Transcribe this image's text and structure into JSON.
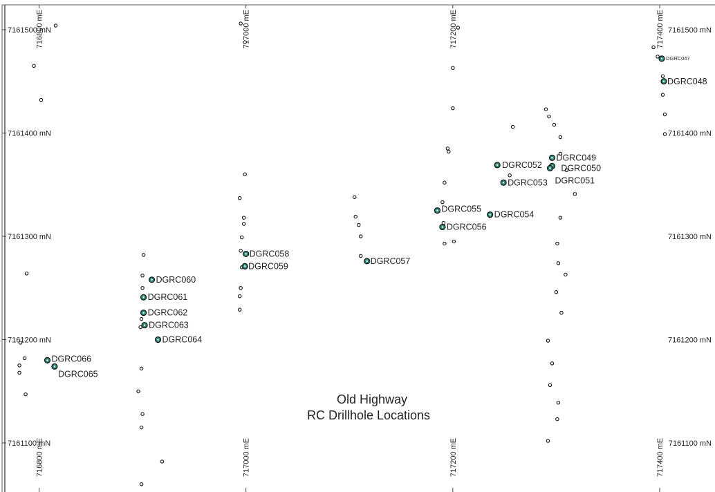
{
  "map": {
    "title_lines": [
      "Old Highway",
      "RC Drillhole Locations"
    ],
    "colors": {
      "labelled_hole_fill": "#2e8b7a",
      "hole_stroke": "#111111",
      "grid": "#444444",
      "border": "#555555",
      "background": "#ffffff"
    },
    "northing_labels": [
      {
        "value": 7161500,
        "text": "7161500 mN"
      },
      {
        "value": 7161400,
        "text": "7161400 mN"
      },
      {
        "value": 7161300,
        "text": "7161300 mN"
      },
      {
        "value": 7161200,
        "text": "7161200 mN"
      },
      {
        "value": 7161100,
        "text": "7161100 mN"
      }
    ],
    "easting_labels": [
      {
        "value": 716800,
        "text": "716800 mE"
      },
      {
        "value": 717000,
        "text": "717000 mE"
      },
      {
        "value": 717200,
        "text": "717200 mE"
      },
      {
        "value": 717400,
        "text": "717400 mE"
      }
    ],
    "labelled_holes": [
      {
        "id": "DGRC047",
        "e": 717402,
        "n": 7161472,
        "small": true
      },
      {
        "id": "DGRC048",
        "e": 717404,
        "n": 7161450
      },
      {
        "id": "DGRC049",
        "e": 717296,
        "n": 7161376
      },
      {
        "id": "DGRC050",
        "e": 717296,
        "n": 7161368
      },
      {
        "id": "DGRC051",
        "e": 717294,
        "n": 7161366
      },
      {
        "id": "DGRC052",
        "e": 717243,
        "n": 7161369
      },
      {
        "id": "DGRC053",
        "e": 717249,
        "n": 7161352
      },
      {
        "id": "DGRC054",
        "e": 717236,
        "n": 7161321
      },
      {
        "id": "DGRC055",
        "e": 717185,
        "n": 7161325
      },
      {
        "id": "DGRC056",
        "e": 717190,
        "n": 7161309
      },
      {
        "id": "DGRC057",
        "e": 717117,
        "n": 7161276
      },
      {
        "id": "DGRC058",
        "e": 717000,
        "n": 7161283
      },
      {
        "id": "DGRC059",
        "e": 716999,
        "n": 7161271
      },
      {
        "id": "DGRC060",
        "e": 716909,
        "n": 7161258
      },
      {
        "id": "DGRC061",
        "e": 716901,
        "n": 7161241
      },
      {
        "id": "DGRC062",
        "e": 716901,
        "n": 7161226
      },
      {
        "id": "DGRC063",
        "e": 716902,
        "n": 7161214
      },
      {
        "id": "DGRC064",
        "e": 716915,
        "n": 7161200
      },
      {
        "id": "DGRC066",
        "e": 716808,
        "n": 7161180
      },
      {
        "id": "DGRC065",
        "e": 716815,
        "n": 7161174
      }
    ],
    "unlabelled_holes": [
      {
        "e": 716816,
        "n": 7161504
      },
      {
        "e": 716795,
        "n": 7161465
      },
      {
        "e": 716802,
        "n": 7161432
      },
      {
        "e": 716788,
        "n": 7161264
      },
      {
        "e": 716782,
        "n": 7161197
      },
      {
        "e": 716786,
        "n": 7161182
      },
      {
        "e": 716781,
        "n": 7161175
      },
      {
        "e": 716781,
        "n": 7161168
      },
      {
        "e": 716787,
        "n": 7161147
      },
      {
        "e": 716901,
        "n": 7161282
      },
      {
        "e": 716900,
        "n": 7161262
      },
      {
        "e": 716900,
        "n": 7161250
      },
      {
        "e": 716899,
        "n": 7161220
      },
      {
        "e": 716898,
        "n": 7161212
      },
      {
        "e": 716899,
        "n": 7161172
      },
      {
        "e": 716896,
        "n": 7161150
      },
      {
        "e": 716900,
        "n": 7161128
      },
      {
        "e": 716899,
        "n": 7161115
      },
      {
        "e": 716919,
        "n": 7161082
      },
      {
        "e": 716899,
        "n": 7161060
      },
      {
        "e": 716995,
        "n": 7161506
      },
      {
        "e": 716999,
        "n": 7161488
      },
      {
        "e": 716999,
        "n": 7161360
      },
      {
        "e": 716994,
        "n": 7161337
      },
      {
        "e": 716998,
        "n": 7161318
      },
      {
        "e": 716998,
        "n": 7161312
      },
      {
        "e": 716996,
        "n": 7161299
      },
      {
        "e": 716995,
        "n": 7161286
      },
      {
        "e": 716996,
        "n": 7161270
      },
      {
        "e": 716995,
        "n": 7161250
      },
      {
        "e": 716994,
        "n": 7161242
      },
      {
        "e": 716994,
        "n": 7161229
      },
      {
        "e": 717105,
        "n": 7161338
      },
      {
        "e": 717106,
        "n": 7161319
      },
      {
        "e": 717109,
        "n": 7161311
      },
      {
        "e": 717111,
        "n": 7161300
      },
      {
        "e": 717111,
        "n": 7161281
      },
      {
        "e": 717205,
        "n": 7161502
      },
      {
        "e": 717200,
        "n": 7161463
      },
      {
        "e": 717200,
        "n": 7161424
      },
      {
        "e": 717195,
        "n": 7161385
      },
      {
        "e": 717196,
        "n": 7161382
      },
      {
        "e": 717192,
        "n": 7161352
      },
      {
        "e": 717190,
        "n": 7161333
      },
      {
        "e": 717191,
        "n": 7161313
      },
      {
        "e": 717192,
        "n": 7161293
      },
      {
        "e": 717201,
        "n": 7161295
      },
      {
        "e": 717258,
        "n": 7161406
      },
      {
        "e": 717255,
        "n": 7161359
      },
      {
        "e": 717290,
        "n": 7161423
      },
      {
        "e": 717293,
        "n": 7161416
      },
      {
        "e": 717298,
        "n": 7161408
      },
      {
        "e": 717304,
        "n": 7161396
      },
      {
        "e": 717304,
        "n": 7161380
      },
      {
        "e": 717310,
        "n": 7161364
      },
      {
        "e": 717318,
        "n": 7161341
      },
      {
        "e": 717304,
        "n": 7161318
      },
      {
        "e": 717301,
        "n": 7161293
      },
      {
        "e": 717302,
        "n": 7161274
      },
      {
        "e": 717309,
        "n": 7161263
      },
      {
        "e": 717300,
        "n": 7161246
      },
      {
        "e": 717305,
        "n": 7161226
      },
      {
        "e": 717292,
        "n": 7161199
      },
      {
        "e": 717296,
        "n": 7161177
      },
      {
        "e": 717294,
        "n": 7161156
      },
      {
        "e": 717302,
        "n": 7161139
      },
      {
        "e": 717301,
        "n": 7161123
      },
      {
        "e": 717292,
        "n": 7161102
      },
      {
        "e": 717394,
        "n": 7161483
      },
      {
        "e": 717398,
        "n": 7161474
      },
      {
        "e": 717403,
        "n": 7161455
      },
      {
        "e": 717403,
        "n": 7161437
      },
      {
        "e": 717405,
        "n": 7161418
      },
      {
        "e": 717405,
        "n": 7161399
      }
    ]
  }
}
